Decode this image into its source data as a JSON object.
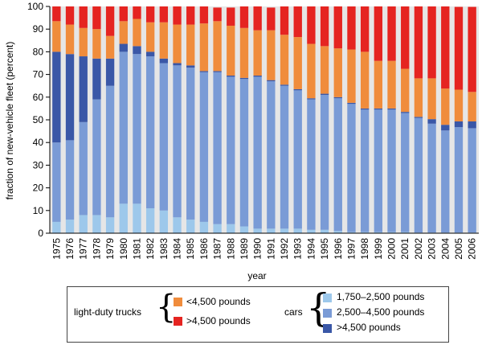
{
  "chart_data": {
    "type": "bar",
    "stacked": true,
    "ylabel": "fraction of new-vehicle fleet (percent)",
    "xlabel": "year",
    "ylim": [
      0,
      100
    ],
    "yticks": [
      0,
      10,
      20,
      30,
      40,
      50,
      60,
      70,
      80,
      90,
      100
    ],
    "grid": false,
    "legend_position": "bottom",
    "categories": [
      "1975",
      "1976",
      "1977",
      "1978",
      "1979",
      "1980",
      "1981",
      "1982",
      "1983",
      "1984",
      "1985",
      "1986",
      "1987",
      "1988",
      "1989",
      "1990",
      "1991",
      "1992",
      "1993",
      "1994",
      "1995",
      "1996",
      "1997",
      "1998",
      "1999",
      "2000",
      "2001",
      "2002",
      "2003",
      "2004",
      "2005",
      "2006"
    ],
    "series": [
      {
        "name": "1,750–2,500 pounds",
        "group": "cars",
        "color": "#9dc8eb",
        "values": [
          5,
          6,
          8,
          8,
          7,
          13,
          13,
          11,
          10,
          7,
          6,
          5,
          4,
          4,
          3,
          2,
          2,
          2,
          2,
          1.5,
          1.5,
          1,
          0.5,
          0.5,
          0.5,
          0.5,
          0.5,
          0.3,
          0.3,
          0.3,
          0.3,
          0.3
        ]
      },
      {
        "name": "2,500–4,500 pounds",
        "group": "cars",
        "color": "#7a9bd6",
        "values": [
          35,
          35,
          41,
          51,
          58,
          67,
          66,
          67,
          65,
          67,
          67,
          66,
          67,
          65,
          65,
          67,
          65,
          63,
          61,
          57.5,
          59.5,
          58.5,
          56.5,
          54,
          54,
          54,
          52.5,
          50.5,
          48,
          45,
          46.5,
          46
        ]
      },
      {
        "name": ">4,500 pounds",
        "group": "cars",
        "color": "#3a57a7",
        "values": [
          40,
          38,
          29,
          18,
          12,
          3.5,
          3.5,
          2,
          2,
          1,
          1,
          0.5,
          0.5,
          0.5,
          0.5,
          0.5,
          0.5,
          0.5,
          0.5,
          0.5,
          0.5,
          0.5,
          0.5,
          0.5,
          0.5,
          0.5,
          0.5,
          0.5,
          2,
          2.5,
          2.5,
          3
        ]
      },
      {
        "name": "<4,500 pounds",
        "group": "light-duty trucks",
        "color": "#f08c3c",
        "values": [
          13.5,
          13,
          12.5,
          13,
          10,
          10,
          12,
          13,
          16,
          17,
          18,
          21,
          22,
          22,
          22,
          20,
          22,
          22,
          23,
          24,
          21,
          21.5,
          23.5,
          25,
          21,
          21,
          19,
          17,
          18,
          16,
          14,
          13
        ]
      },
      {
        "name": ">4,500 pounds",
        "group": "light-duty trucks",
        "color": "#e52421",
        "values": [
          6.5,
          8,
          9.5,
          10,
          13,
          6.5,
          5.5,
          7,
          7,
          8,
          8,
          7.5,
          6,
          8,
          9.5,
          10.5,
          10,
          12.5,
          14,
          16.5,
          17.5,
          18.5,
          19,
          20,
          24.5,
          24.5,
          27.5,
          32,
          32,
          36.5,
          36.5,
          37.5
        ]
      }
    ]
  },
  "legend": {
    "trucks_label": "light-duty trucks",
    "cars_label": "cars"
  }
}
